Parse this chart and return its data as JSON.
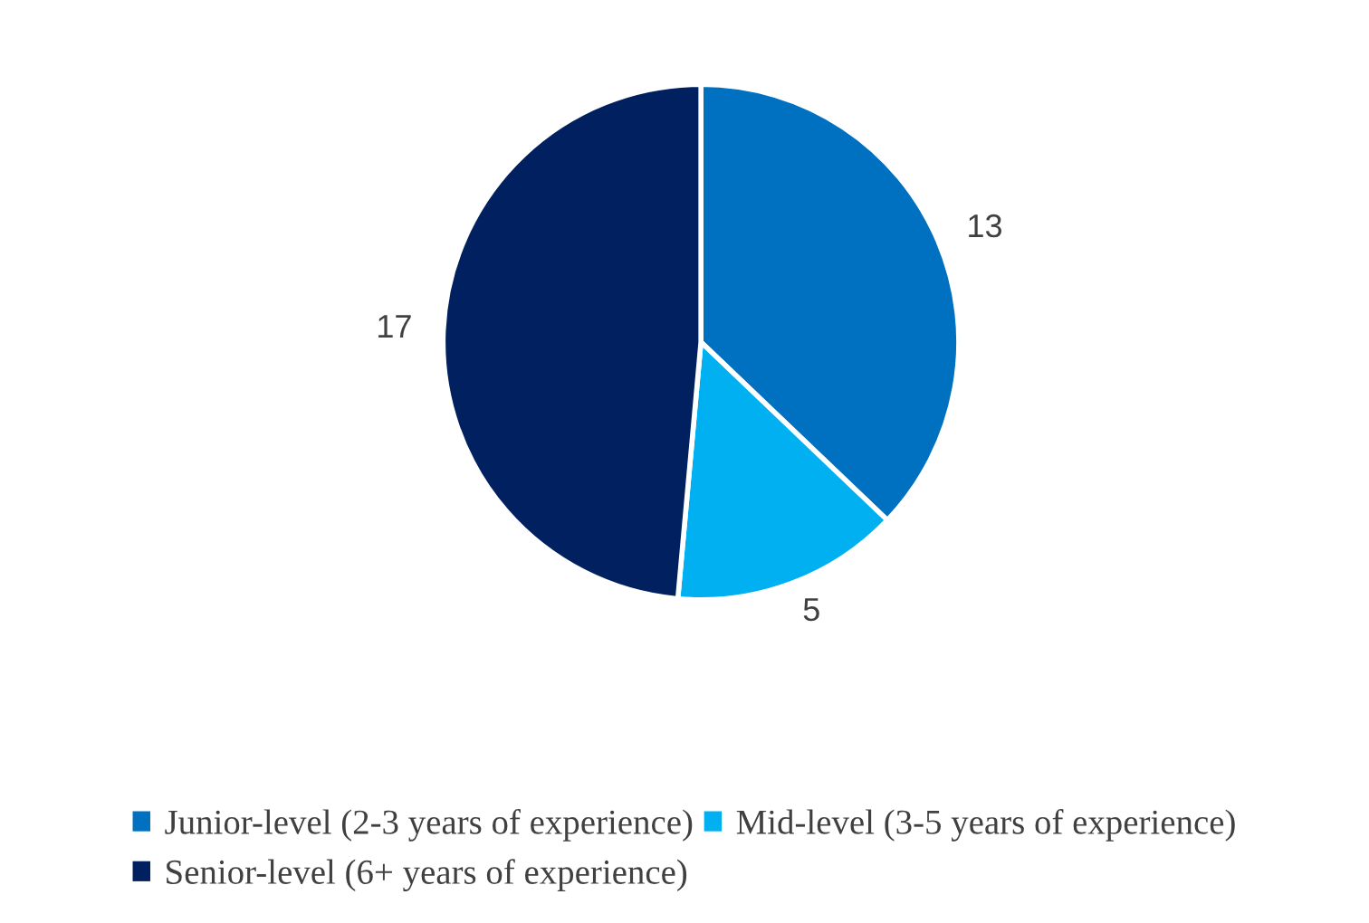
{
  "chart_data": {
    "type": "pie",
    "categories": [
      "Junior-level (2-3 years of experience)",
      "Mid-level (3-5 years of experience)",
      "Senior-level (6+ years of experience)"
    ],
    "values": [
      13,
      5,
      17
    ],
    "colors": [
      "#0070c0",
      "#00b0f0",
      "#002060"
    ],
    "data_labels": true,
    "legend": "bottom"
  }
}
